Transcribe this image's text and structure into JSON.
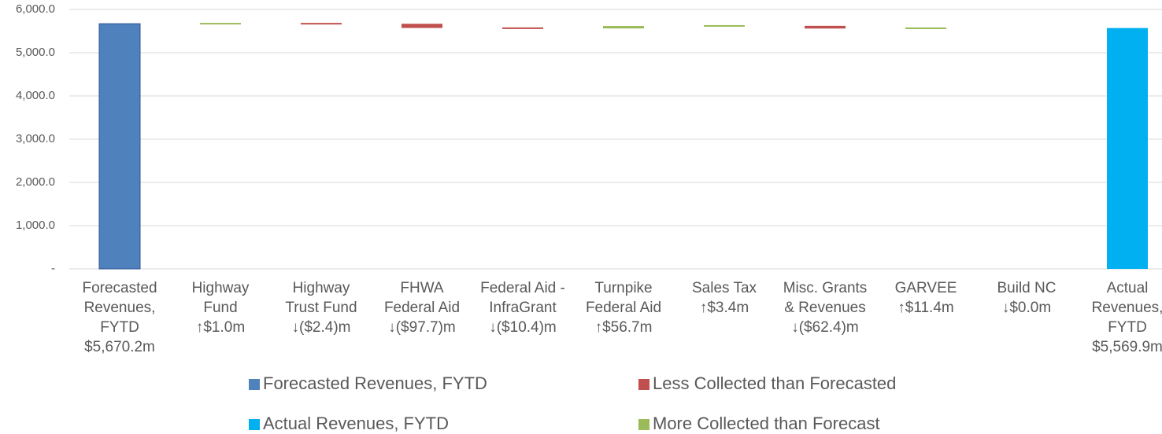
{
  "chart_data": {
    "type": "waterfall",
    "categories": [
      [
        "Forecasted",
        "Revenues,",
        "FYTD"
      ],
      [
        "Highway",
        "Fund"
      ],
      [
        "Highway",
        "Trust Fund"
      ],
      [
        "FHWA",
        "Federal Aid"
      ],
      [
        "Federal Aid -",
        "InfraGrant"
      ],
      [
        "Turnpike",
        "Federal Aid"
      ],
      [
        "Sales Tax"
      ],
      [
        "Misc. Grants",
        "& Revenues"
      ],
      [
        "GARVEE"
      ],
      [
        "Build NC"
      ],
      [
        "Actual",
        "Revenues,",
        "FYTD"
      ]
    ],
    "values": [
      5670.2,
      1.0,
      -2.4,
      -97.7,
      -10.4,
      56.7,
      3.4,
      -62.4,
      11.4,
      0.0,
      5569.9
    ],
    "value_labels": [
      "$5,670.2m",
      "↑$1.0m",
      "↓($2.4)m",
      "↓($97.7)m",
      "↓($10.4)m",
      "↑$56.7m",
      "↑$3.4m",
      "↓($62.4)m",
      "↑$11.4m",
      "↓$0.0m",
      "$5,569.9m"
    ],
    "legend": [
      {
        "name": "Forecasted Revenues, FYTD",
        "color": "#4f81bd"
      },
      {
        "name": "Less Collected than Forecasted",
        "color": "#c0504d"
      },
      {
        "name": "Actual Revenues, FYTD",
        "color": "#00b0f0"
      },
      {
        "name": "More Collected than Forecast",
        "color": "#9bbb59"
      }
    ],
    "ylim": [
      0,
      6000
    ],
    "yticks": [
      {
        "value": 0,
        "label": "-"
      },
      {
        "value": 1000,
        "label": "1,000.0"
      },
      {
        "value": 2000,
        "label": "2,000.0"
      },
      {
        "value": 3000,
        "label": "3,000.0"
      },
      {
        "value": 4000,
        "label": "4,000.0"
      },
      {
        "value": 5000,
        "label": "5,000.0"
      },
      {
        "value": 6000,
        "label": "6,000.0"
      }
    ],
    "grid": true
  }
}
